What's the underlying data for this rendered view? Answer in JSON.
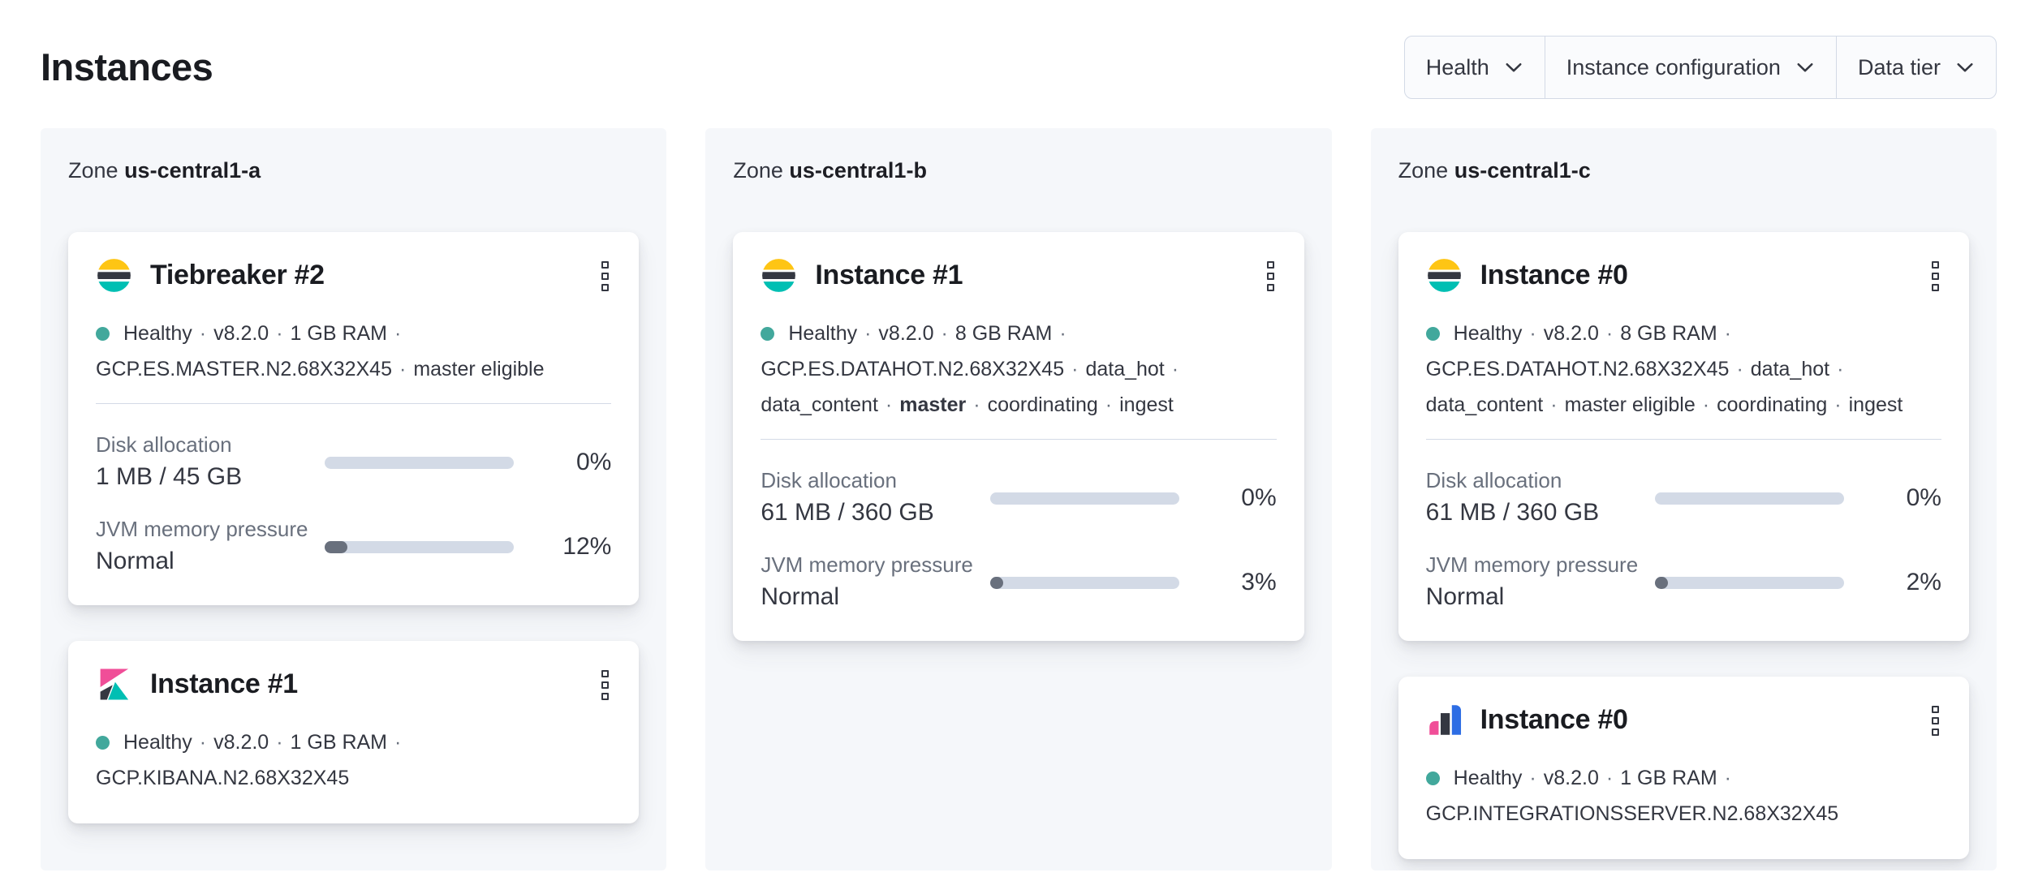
{
  "page": {
    "title": "Instances"
  },
  "separator": "·",
  "filters": [
    {
      "label": "Health"
    },
    {
      "label": "Instance configuration"
    },
    {
      "label": "Data tier"
    }
  ],
  "icons": {
    "filter_dropdown": "chevron-down-icon",
    "card_menu": "boxes-vertical-icon"
  },
  "colors": {
    "health_dot": "#42a89c",
    "bar_track": "#d3dae6",
    "bar_fill": "#69707d",
    "panel_bg": "#f5f7fa",
    "logo_yellow": "#fec514",
    "logo_dark": "#343741",
    "logo_teal": "#00bfb3",
    "logo_pink": "#f04e98",
    "logo_blue": "#2d6de4"
  },
  "zones": [
    {
      "label_prefix": "Zone",
      "name": "us-central1-a",
      "cards": [
        {
          "logo": "elasticsearch",
          "title": "Tiebreaker #2",
          "status_lines": [
            [
              {
                "type": "dot"
              },
              {
                "type": "text",
                "text": "Healthy"
              },
              {
                "type": "sep"
              },
              {
                "type": "text",
                "text": "v8.2.0"
              },
              {
                "type": "sep"
              },
              {
                "type": "text",
                "text": "1 GB RAM"
              },
              {
                "type": "sep"
              }
            ],
            [
              {
                "type": "text",
                "text": "GCP.ES.MASTER.N2.68X32X45"
              },
              {
                "type": "sep"
              },
              {
                "type": "text",
                "text": "master eligible"
              }
            ]
          ],
          "metrics": [
            {
              "label": "Disk allocation",
              "value": "1 MB / 45 GB",
              "percent": "0%",
              "fill_pct": 0
            },
            {
              "label": "JVM memory pressure",
              "value": "Normal",
              "percent": "12%",
              "fill_pct": 12
            }
          ]
        },
        {
          "logo": "kibana",
          "title": "Instance #1",
          "status_lines": [
            [
              {
                "type": "dot"
              },
              {
                "type": "text",
                "text": "Healthy"
              },
              {
                "type": "sep"
              },
              {
                "type": "text",
                "text": "v8.2.0"
              },
              {
                "type": "sep"
              },
              {
                "type": "text",
                "text": "1 GB RAM"
              },
              {
                "type": "sep"
              }
            ],
            [
              {
                "type": "text",
                "text": "GCP.KIBANA.N2.68X32X45"
              }
            ]
          ],
          "metrics": []
        }
      ]
    },
    {
      "label_prefix": "Zone",
      "name": "us-central1-b",
      "cards": [
        {
          "logo": "elasticsearch",
          "title": "Instance #1",
          "status_lines": [
            [
              {
                "type": "dot"
              },
              {
                "type": "text",
                "text": "Healthy"
              },
              {
                "type": "sep"
              },
              {
                "type": "text",
                "text": "v8.2.0"
              },
              {
                "type": "sep"
              },
              {
                "type": "text",
                "text": "8 GB RAM"
              },
              {
                "type": "sep"
              }
            ],
            [
              {
                "type": "text",
                "text": "GCP.ES.DATAHOT.N2.68X32X45"
              },
              {
                "type": "sep"
              },
              {
                "type": "text",
                "text": "data_hot"
              },
              {
                "type": "sep"
              }
            ],
            [
              {
                "type": "text",
                "text": "data_content"
              },
              {
                "type": "sep"
              },
              {
                "type": "text",
                "text": "master",
                "bold": true
              },
              {
                "type": "sep"
              },
              {
                "type": "text",
                "text": "coordinating"
              },
              {
                "type": "sep"
              },
              {
                "type": "text",
                "text": "ingest"
              }
            ]
          ],
          "metrics": [
            {
              "label": "Disk allocation",
              "value": "61 MB / 360 GB",
              "percent": "0%",
              "fill_pct": 0
            },
            {
              "label": "JVM memory pressure",
              "value": "Normal",
              "percent": "3%",
              "fill_pct": 3
            }
          ]
        }
      ]
    },
    {
      "label_prefix": "Zone",
      "name": "us-central1-c",
      "cards": [
        {
          "logo": "elasticsearch",
          "title": "Instance #0",
          "status_lines": [
            [
              {
                "type": "dot"
              },
              {
                "type": "text",
                "text": "Healthy"
              },
              {
                "type": "sep"
              },
              {
                "type": "text",
                "text": "v8.2.0"
              },
              {
                "type": "sep"
              },
              {
                "type": "text",
                "text": "8 GB RAM"
              },
              {
                "type": "sep"
              }
            ],
            [
              {
                "type": "text",
                "text": "GCP.ES.DATAHOT.N2.68X32X45"
              },
              {
                "type": "sep"
              },
              {
                "type": "text",
                "text": "data_hot"
              },
              {
                "type": "sep"
              }
            ],
            [
              {
                "type": "text",
                "text": "data_content"
              },
              {
                "type": "sep"
              },
              {
                "type": "text",
                "text": "master eligible"
              },
              {
                "type": "sep"
              },
              {
                "type": "text",
                "text": "coordinating"
              },
              {
                "type": "sep"
              },
              {
                "type": "text",
                "text": "ingest"
              }
            ]
          ],
          "metrics": [
            {
              "label": "Disk allocation",
              "value": "61 MB / 360 GB",
              "percent": "0%",
              "fill_pct": 0
            },
            {
              "label": "JVM memory pressure",
              "value": "Normal",
              "percent": "2%",
              "fill_pct": 2
            }
          ]
        },
        {
          "logo": "integrations_server",
          "title": "Instance #0",
          "status_lines": [
            [
              {
                "type": "dot"
              },
              {
                "type": "text",
                "text": "Healthy"
              },
              {
                "type": "sep"
              },
              {
                "type": "text",
                "text": "v8.2.0"
              },
              {
                "type": "sep"
              },
              {
                "type": "text",
                "text": "1 GB RAM"
              },
              {
                "type": "sep"
              }
            ],
            [
              {
                "type": "text",
                "text": "GCP.INTEGRATIONSSERVER.N2.68X32X45"
              }
            ]
          ],
          "metrics": []
        }
      ]
    }
  ]
}
